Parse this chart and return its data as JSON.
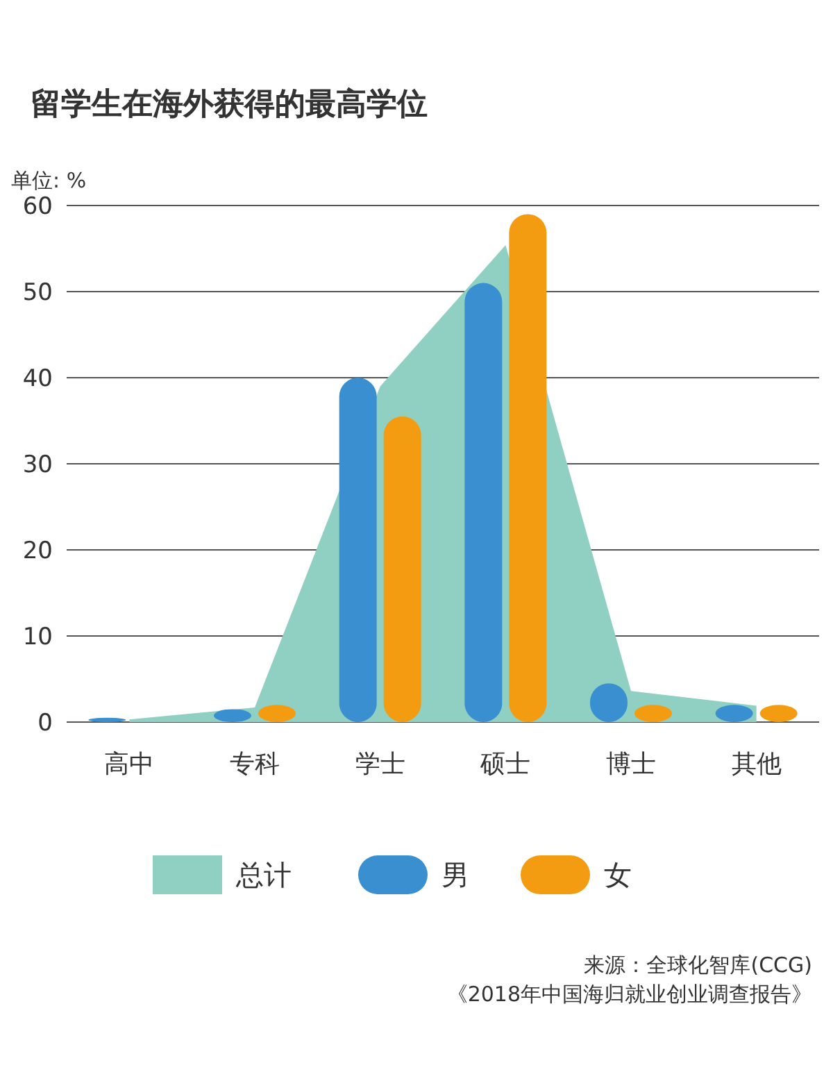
{
  "chart_data": {
    "type": "bar",
    "title": "留学生在海外获得的最高学位",
    "ylabel": "单位: %",
    "categories": [
      "高中",
      "专科",
      "学士",
      "硕士",
      "博士",
      "其他"
    ],
    "series": [
      {
        "name": "总计",
        "type": "area",
        "color": "#8fd0c2",
        "values": [
          0.3,
          1.7,
          39,
          55.4,
          3.6,
          1.9
        ]
      },
      {
        "name": "男",
        "color": "#3a8fd0",
        "values": [
          0.5,
          1.5,
          40,
          51,
          4.5,
          2
        ]
      },
      {
        "name": "女",
        "color": "#f39c12",
        "values": [
          null,
          2,
          35.5,
          59,
          2,
          2
        ]
      }
    ],
    "ylim": [
      0,
      60
    ],
    "yticks": [
      0,
      10,
      20,
      30,
      40,
      50,
      60
    ],
    "grid": "y",
    "legend": "bottom",
    "annotations": [
      "来源：全球化智库(CCG)",
      "《2018年中国海归就业创业调查报告》"
    ]
  }
}
